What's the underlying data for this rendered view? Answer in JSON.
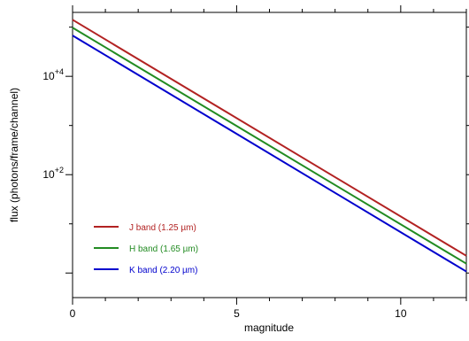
{
  "chart_data": {
    "type": "line",
    "xlabel": "magnitude",
    "ylabel": "flux (photons/frame/channel)",
    "xlim": [
      0,
      12
    ],
    "ylim_log10": [
      -0.5,
      5.3
    ],
    "yscale": "log",
    "x_ticks": [
      {
        "value": 0,
        "label": "0"
      },
      {
        "value": 5,
        "label": "5"
      },
      {
        "value": 10,
        "label": "10"
      }
    ],
    "y_ticks": [
      {
        "value_log10": 4,
        "label": "10+4"
      },
      {
        "value_log10": 2,
        "label": "10+2"
      }
    ],
    "grid": false,
    "legend_position": "bottom-left",
    "series": [
      {
        "name": "J band (1.25 µm)",
        "color": "#b22222",
        "x": [
          0,
          12
        ],
        "log10_y": [
          5.15,
          0.35
        ]
      },
      {
        "name": "H band (1.65 µm)",
        "color": "#228b22",
        "x": [
          0,
          12
        ],
        "log10_y": [
          4.99,
          0.19
        ]
      },
      {
        "name": "K band (2.20 µm)",
        "color": "#0000cd",
        "x": [
          0,
          12
        ],
        "log10_y": [
          4.83,
          0.03
        ]
      }
    ]
  }
}
